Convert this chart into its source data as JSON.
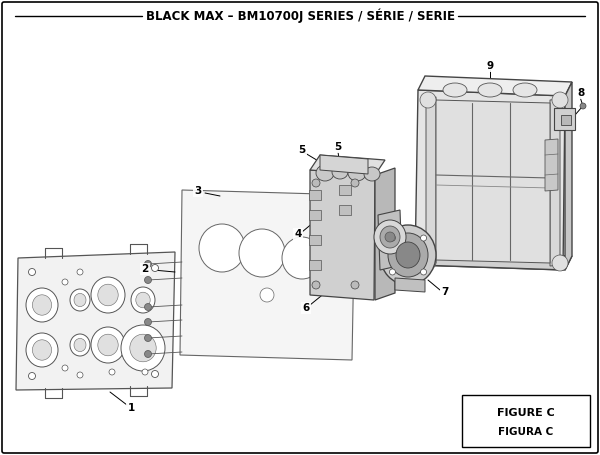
{
  "title": "BLACK MAX – BM10700J SERIES / SÉRIE / SERIE",
  "title_fontsize": 8.5,
  "figure_c_text": "FIGURE C",
  "figura_c_text": "FIGURA C",
  "bg_color": "#ffffff",
  "line_color": "#000000",
  "edge_color": "#444444",
  "light_gray": "#e8e8e8",
  "mid_gray": "#c8c8c8",
  "dark_gray": "#999999"
}
